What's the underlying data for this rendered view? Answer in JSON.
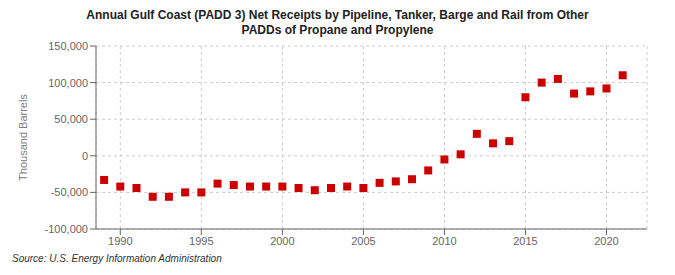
{
  "chart_data": {
    "type": "scatter",
    "title": "Annual Gulf Coast (PADD 3) Net Receipts by Pipeline, Tanker, Barge and Rail from Other\nPADDs of Propane and Propylene",
    "ylabel": "Thousand Barrels",
    "annotations": [
      "Source: U.S. Energy Information Administration"
    ],
    "x": [
      1989,
      1990,
      1991,
      1992,
      1993,
      1994,
      1995,
      1996,
      1997,
      1998,
      1999,
      2000,
      2001,
      2002,
      2003,
      2004,
      2005,
      2006,
      2007,
      2008,
      2009,
      2010,
      2011,
      2012,
      2013,
      2014,
      2015,
      2016,
      2017,
      2018,
      2019,
      2020,
      2021
    ],
    "values": [
      -33000,
      -42000,
      -44000,
      -56000,
      -56000,
      -50000,
      -50000,
      -38000,
      -40000,
      -42000,
      -42000,
      -42000,
      -44000,
      -47000,
      -44000,
      -42000,
      -44000,
      -37000,
      -35000,
      -32000,
      -20000,
      -5000,
      2000,
      30000,
      17000,
      20000,
      80000,
      100000,
      105000,
      85000,
      88000,
      92000,
      110000
    ],
    "color": "#cc0000",
    "marker": "square",
    "xlim": [
      1988.5,
      2022.5
    ],
    "xticks": [
      1990,
      1995,
      2000,
      2005,
      2010,
      2015,
      2020
    ],
    "ylim": [
      -100000,
      150000
    ],
    "yticks": [
      {
        "value": -100000,
        "label": "-100,000"
      },
      {
        "value": -50000,
        "label": "-50,000"
      },
      0,
      {
        "value": 50000,
        "label": "50,000"
      },
      {
        "value": 100000,
        "label": "100,000"
      },
      {
        "value": 150000,
        "label": "150,000"
      }
    ],
    "grid": true
  }
}
